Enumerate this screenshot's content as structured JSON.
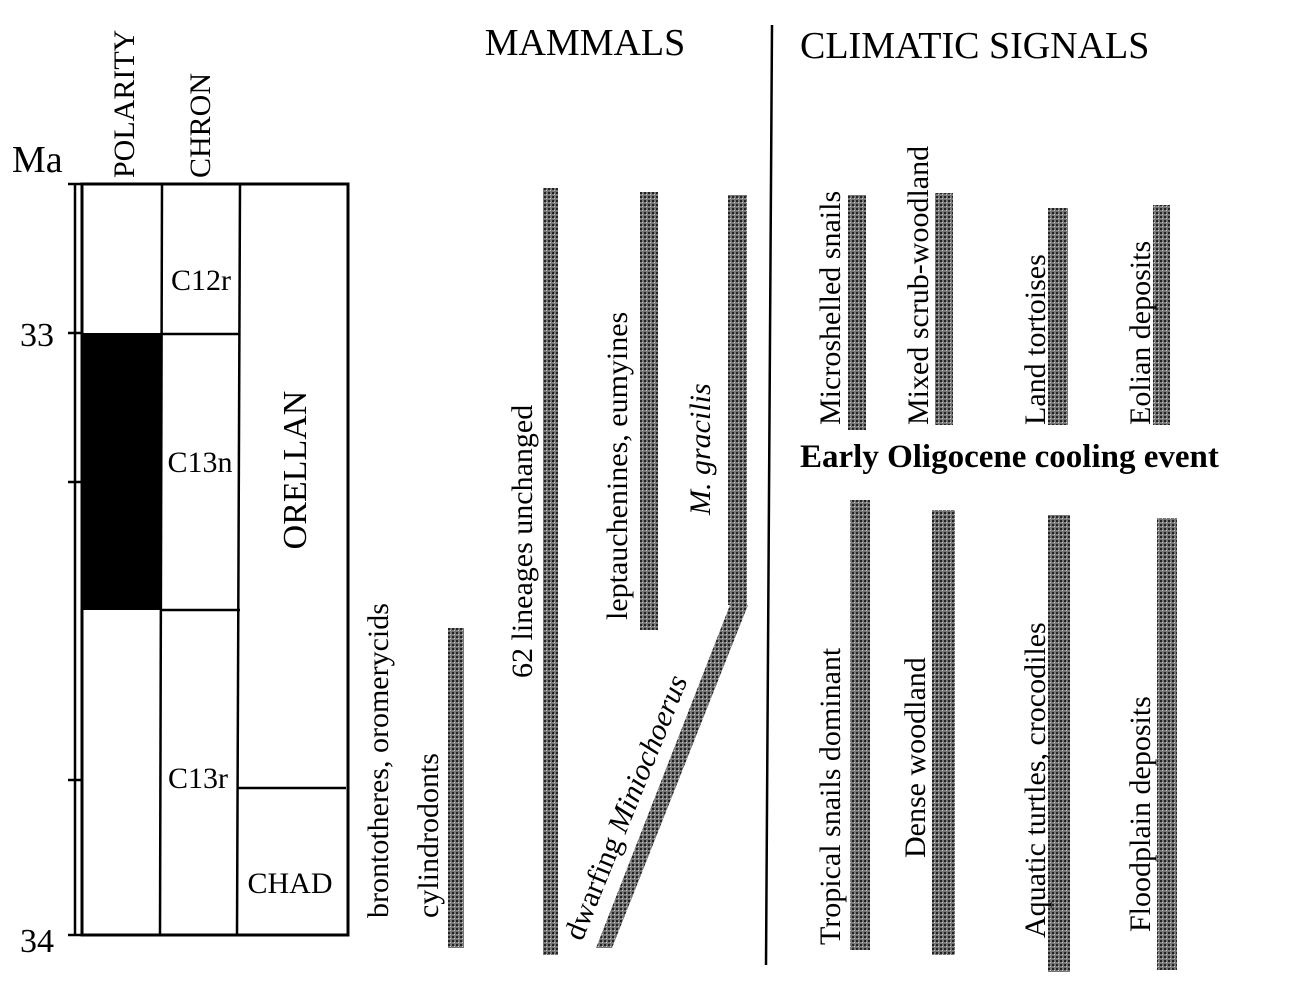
{
  "axis": {
    "unit": "Ma",
    "ticks": [
      33,
      34
    ]
  },
  "columns": {
    "polarity": "POLARITY",
    "chron": "CHRON"
  },
  "chrons": [
    "C12r",
    "C13n",
    "C13r"
  ],
  "stages": [
    "ORELLAN",
    "CHAD"
  ],
  "mammals": {
    "title": "MAMMALS",
    "ranges": [
      "brontotheres, oromerycids",
      "cylindrodonts",
      "62 lineages unchanged",
      "leptauchenines, eumyines",
      "M. gracilis"
    ],
    "dwarfing": {
      "prefix": "dwarfing",
      "taxon": "Miniochoerus"
    }
  },
  "climate": {
    "title": "CLIMATIC SIGNALS",
    "event": "Early Oligocene cooling event",
    "upper": [
      "Microshelled snails",
      "Mixed scrub-woodland",
      "Land tortoises",
      "Eolian deposits"
    ],
    "lower": [
      "Tropical snails dominant",
      "Dense woodland",
      "Aquatic turtles, crocodiles",
      "Floodplain deposits"
    ]
  }
}
